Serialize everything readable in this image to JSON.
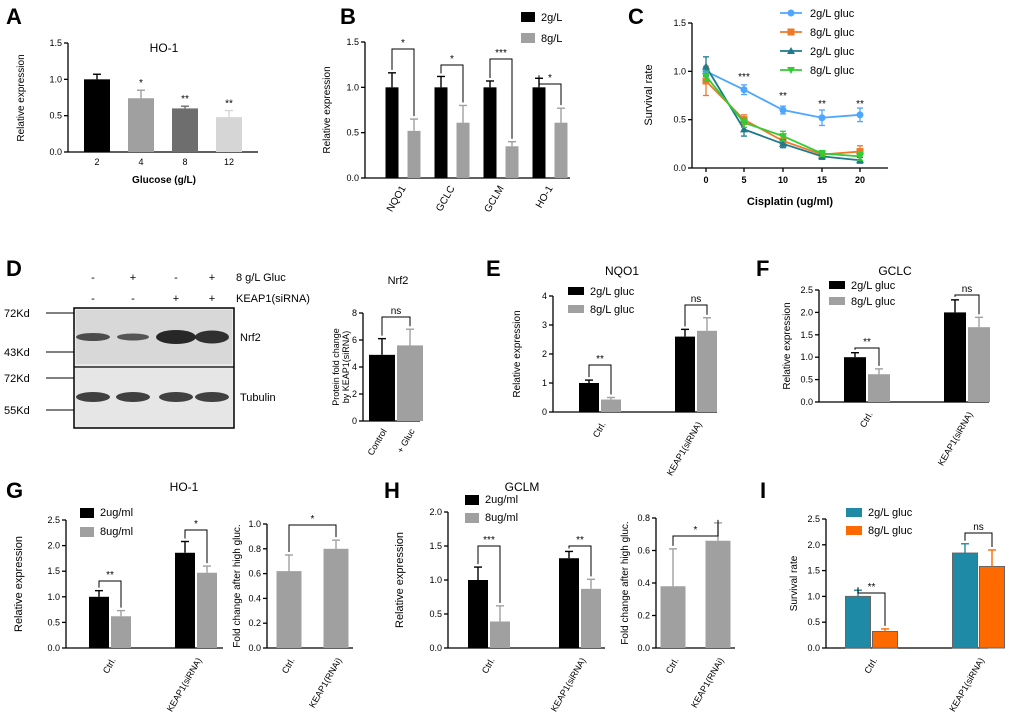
{
  "panel_labels": {
    "A": "A",
    "B": "B",
    "C": "C",
    "D": "D",
    "E": "E",
    "F": "F",
    "G": "G",
    "H": "H",
    "I": "I"
  },
  "chart_data": [
    {
      "id": "A",
      "type": "bar",
      "title": "HO-1",
      "xlabel": "Glucose (g/L)",
      "ylabel": "Relative expression",
      "ylim": [
        0,
        1.5
      ],
      "yticks": [
        "0.0",
        "0.5",
        "1.0",
        "1.5"
      ],
      "categories": [
        "2",
        "4",
        "8",
        "12"
      ],
      "series": [
        {
          "name": "expression",
          "values": [
            1.0,
            0.74,
            0.6,
            0.48
          ],
          "errors": [
            0.07,
            0.11,
            0.03,
            0.09
          ],
          "colors": [
            "#000000",
            "#a0a0a0",
            "#6e6e6e",
            "#d6d6d6"
          ],
          "sig": [
            "",
            "*",
            "**",
            "**"
          ]
        }
      ]
    },
    {
      "id": "B",
      "type": "bar",
      "title": "",
      "xlabel": "",
      "ylabel": "Relative expression",
      "ylim": [
        0,
        1.5
      ],
      "yticks": [
        "0.0",
        "0.5",
        "1.0",
        "1.5"
      ],
      "categories": [
        "NQO1",
        "GCLC",
        "GCLM",
        "HO-1"
      ],
      "series": [
        {
          "name": "2g/L",
          "color": "#000000",
          "values": [
            1.0,
            1.0,
            1.0,
            1.0
          ],
          "errors": [
            0.16,
            0.12,
            0.07,
            0.1
          ]
        },
        {
          "name": "8g/L",
          "color": "#a0a0a0",
          "values": [
            0.52,
            0.61,
            0.35,
            0.61
          ],
          "errors": [
            0.13,
            0.19,
            0.05,
            0.16
          ]
        }
      ],
      "sig": [
        "*",
        "*",
        "***",
        "*"
      ]
    },
    {
      "id": "C",
      "type": "line",
      "title": "",
      "xlabel": "Cisplatin (ug/ml)",
      "ylabel": "Survival rate",
      "ylim": [
        0,
        1.5
      ],
      "yticks": [
        "0.0",
        "0.5",
        "1.0",
        "1.5"
      ],
      "x": [
        0,
        5,
        10,
        15,
        20
      ],
      "xticks": [
        "0",
        "5",
        "10",
        "15",
        "20"
      ],
      "series": [
        {
          "name": "2g/L gluc",
          "color": "#4da6ff",
          "marker": "circle",
          "values": [
            1.0,
            0.81,
            0.6,
            0.52,
            0.55
          ],
          "errors": [
            0.05,
            0.05,
            0.04,
            0.08,
            0.07
          ]
        },
        {
          "name": "8g/L gluc",
          "color": "#f07828",
          "marker": "square",
          "values": [
            0.9,
            0.5,
            0.28,
            0.14,
            0.17
          ],
          "errors": [
            0.15,
            0.05,
            0.05,
            0.04,
            0.06
          ]
        },
        {
          "name": "2g/L gluc",
          "color": "#1f7a8c",
          "marker": "triangle",
          "values": [
            1.05,
            0.4,
            0.25,
            0.12,
            0.08
          ],
          "errors": [
            0.1,
            0.07,
            0.04,
            0.03,
            0.03
          ]
        },
        {
          "name": "8g/L gluc",
          "color": "#33cc33",
          "marker": "triangle-down",
          "values": [
            0.95,
            0.47,
            0.33,
            0.15,
            0.12
          ],
          "errors": [
            0.05,
            0.05,
            0.05,
            0.03,
            0.04
          ]
        }
      ],
      "sig": [
        "",
        "***",
        "**",
        "**",
        "**"
      ]
    },
    {
      "id": "D-blot",
      "type": "other",
      "title": "Western blot",
      "conditions": [
        {
          "gluc": "-",
          "keap": "-"
        },
        {
          "gluc": "+",
          "keap": "-"
        },
        {
          "gluc": "-",
          "keap": "+"
        },
        {
          "gluc": "+",
          "keap": "+"
        }
      ],
      "row_labels": [
        "8 g/L Gluc",
        "KEAP1(siRNA)"
      ],
      "markers": [
        "72Kd",
        "43Kd",
        "72Kd",
        "55Kd"
      ],
      "bands": [
        "Nrf2",
        "Tubulin"
      ]
    },
    {
      "id": "D-bar",
      "type": "bar",
      "title": "Nrf2",
      "xlabel": "",
      "ylabel": "Protein fold change by KEAP1(siRNA)",
      "ylim": [
        0,
        8
      ],
      "yticks": [
        "0",
        "2",
        "4",
        "6",
        "8"
      ],
      "categories": [
        "Control",
        "+ Gluc"
      ],
      "series": [
        {
          "name": "fold",
          "values": [
            4.9,
            5.6
          ],
          "errors": [
            1.2,
            1.2
          ],
          "colors": [
            "#000000",
            "#a0a0a0"
          ]
        }
      ],
      "sig": [
        "ns"
      ]
    },
    {
      "id": "E",
      "type": "bar",
      "title": "NQO1",
      "xlabel": "",
      "ylabel": "Relative expression",
      "ylim": [
        0,
        4
      ],
      "yticks": [
        "0",
        "1",
        "2",
        "3",
        "4"
      ],
      "categories": [
        "Ctrl.",
        "KEAP1(siRNA)"
      ],
      "series": [
        {
          "name": "2g/L gluc",
          "color": "#000000",
          "values": [
            1.0,
            2.6
          ],
          "errors": [
            0.1,
            0.25
          ]
        },
        {
          "name": "8g/L gluc",
          "color": "#a0a0a0",
          "values": [
            0.43,
            2.8
          ],
          "errors": [
            0.07,
            0.45
          ]
        }
      ],
      "sig": [
        "**",
        "ns"
      ]
    },
    {
      "id": "F",
      "type": "bar",
      "title": "GCLC",
      "xlabel": "",
      "ylabel": "Relative expression",
      "ylim": [
        0,
        2.5
      ],
      "yticks": [
        "0.0",
        "0.5",
        "1.0",
        "1.5",
        "2.0",
        "2.5"
      ],
      "categories": [
        "Ctrl.",
        "KEAP1(siRNA)"
      ],
      "series": [
        {
          "name": "2g/L gluc",
          "color": "#000000",
          "values": [
            1.0,
            2.0
          ],
          "errors": [
            0.1,
            0.28
          ]
        },
        {
          "name": "8g/L gluc",
          "color": "#a0a0a0",
          "values": [
            0.62,
            1.67
          ],
          "errors": [
            0.12,
            0.22
          ]
        }
      ],
      "sig": [
        "**",
        "ns"
      ]
    },
    {
      "id": "G",
      "type": "bar",
      "title": "HO-1",
      "xlabel": "",
      "ylabel": "Relative expression",
      "ylim": [
        0,
        2.5
      ],
      "yticks": [
        "0.0",
        "0.5",
        "1.0",
        "1.5",
        "2.0",
        "2.5"
      ],
      "categories": [
        "Ctrl.",
        "KEAP1(siRNA)"
      ],
      "series": [
        {
          "name": "2ug/ml",
          "color": "#000000",
          "values": [
            1.0,
            1.86
          ],
          "errors": [
            0.12,
            0.22
          ]
        },
        {
          "name": "8ug/ml",
          "color": "#a0a0a0",
          "values": [
            0.62,
            1.47
          ],
          "errors": [
            0.11,
            0.13
          ]
        }
      ],
      "sig": [
        "**",
        "*"
      ]
    },
    {
      "id": "G2",
      "type": "bar",
      "title": "",
      "xlabel": "",
      "ylabel": "Fold change after high gluc.",
      "ylim": [
        0,
        1.0
      ],
      "yticks": [
        "0.0",
        "0.2",
        "0.4",
        "0.6",
        "0.8",
        "1.0"
      ],
      "categories": [
        "Ctrl.",
        "KEAP1(RNAi)"
      ],
      "series": [
        {
          "name": "fold",
          "values": [
            0.62,
            0.8
          ],
          "errors": [
            0.13,
            0.07
          ],
          "colors": [
            "#a0a0a0",
            "#a0a0a0"
          ]
        }
      ],
      "sig": [
        "*"
      ]
    },
    {
      "id": "H",
      "type": "bar",
      "title": "GCLM",
      "xlabel": "",
      "ylabel": "Relative expression",
      "ylim": [
        0,
        2.0
      ],
      "yticks": [
        "0.0",
        "0.5",
        "1.0",
        "1.5",
        "2.0"
      ],
      "categories": [
        "Ctrl.",
        "KEAP1(siRNA)"
      ],
      "series": [
        {
          "name": "2ug/ml",
          "color": "#000000",
          "values": [
            1.0,
            1.32
          ],
          "errors": [
            0.19,
            0.1
          ]
        },
        {
          "name": "8ug/ml",
          "color": "#a0a0a0",
          "values": [
            0.39,
            0.87
          ],
          "errors": [
            0.23,
            0.14
          ]
        }
      ],
      "sig": [
        "***",
        "**"
      ]
    },
    {
      "id": "H2",
      "type": "bar",
      "title": "",
      "xlabel": "",
      "ylabel": "Fold change after high gluc.",
      "ylim": [
        0,
        0.8
      ],
      "yticks": [
        "0.0",
        "0.2",
        "0.4",
        "0.6",
        "0.8"
      ],
      "categories": [
        "Ctrl.",
        "KEAP1(RNAi)"
      ],
      "series": [
        {
          "name": "fold",
          "values": [
            0.38,
            0.66
          ],
          "errors": [
            0.23,
            0.11
          ],
          "colors": [
            "#a0a0a0",
            "#a0a0a0"
          ]
        }
      ],
      "sig": [
        "*"
      ]
    },
    {
      "id": "I",
      "type": "bar",
      "title": "",
      "xlabel": "",
      "ylabel": "Survival rate",
      "ylim": [
        0,
        2.5
      ],
      "yticks": [
        "0.0",
        "0.5",
        "1.0",
        "1.5",
        "2.0",
        "2.5"
      ],
      "categories": [
        "Ctrl.",
        "KEAP1(siRNA)"
      ],
      "series": [
        {
          "name": "2g/L gluc",
          "color": "#1f8aa6",
          "values": [
            1.0,
            1.84
          ],
          "errors": [
            0.12,
            0.18
          ]
        },
        {
          "name": "8g/L gluc",
          "color": "#ff6a00",
          "values": [
            0.32,
            1.58
          ],
          "errors": [
            0.05,
            0.32
          ]
        }
      ],
      "sig": [
        "**",
        "ns"
      ]
    }
  ]
}
